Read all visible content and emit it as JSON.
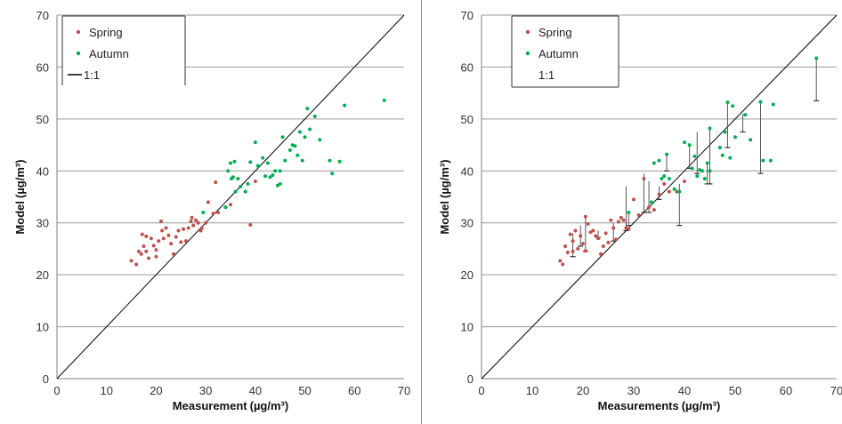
{
  "chart_data": [
    {
      "type": "scatter",
      "xlabel": "Measurement",
      "xunit": "(µg/m³)",
      "ylabel": "Model",
      "yunit": "(µg/m³)",
      "xlim": [
        0,
        70
      ],
      "ylim": [
        0,
        70
      ],
      "x_ticks": [
        "0",
        "10",
        "20",
        "30",
        "40",
        "50",
        "60",
        "70"
      ],
      "y_ticks": [
        "0",
        "10",
        "20",
        "30",
        "40",
        "50",
        "60",
        "70"
      ],
      "grid": "horizontal",
      "legend": {
        "position": "top-left",
        "entries": [
          {
            "label": "Spring",
            "color": "#c0504d",
            "marker": "dot"
          },
          {
            "label": "Autumn",
            "color": "#00b050",
            "marker": "dot"
          },
          {
            "label": "1:1",
            "color": "#000000",
            "marker": "line"
          }
        ]
      },
      "reference_line": {
        "name": "1:1",
        "from": [
          0,
          0
        ],
        "to": [
          70,
          70
        ]
      },
      "series": [
        {
          "name": "Spring",
          "color": "#c0504d",
          "points": [
            [
              15,
              22.7
            ],
            [
              16,
              22
            ],
            [
              16.5,
              24.5
            ],
            [
              17,
              24
            ],
            [
              17.2,
              27.8
            ],
            [
              17.5,
              25.5
            ],
            [
              18,
              27.4
            ],
            [
              18,
              24.5
            ],
            [
              18.5,
              23.2
            ],
            [
              19,
              27
            ],
            [
              19.5,
              25.6
            ],
            [
              20,
              24.8
            ],
            [
              20,
              23.5
            ],
            [
              20.5,
              26.5
            ],
            [
              21,
              30.3
            ],
            [
              21.2,
              28.5
            ],
            [
              21.5,
              27
            ],
            [
              22,
              29
            ],
            [
              22.5,
              27.6
            ],
            [
              23,
              26
            ],
            [
              23.5,
              24
            ],
            [
              24,
              27.3
            ],
            [
              24.5,
              28.5
            ],
            [
              25,
              26.3
            ],
            [
              25.5,
              28.8
            ],
            [
              26,
              26.5
            ],
            [
              26.5,
              29
            ],
            [
              27,
              30.3
            ],
            [
              27.2,
              31
            ],
            [
              27.5,
              29.5
            ],
            [
              28,
              30.5
            ],
            [
              28.5,
              30
            ],
            [
              29,
              28.5
            ],
            [
              29.2,
              29
            ],
            [
              30,
              30
            ],
            [
              30.5,
              34
            ],
            [
              31.5,
              31.8
            ],
            [
              32,
              37.8
            ],
            [
              32.5,
              32
            ],
            [
              34,
              33
            ],
            [
              35,
              33.5
            ],
            [
              38,
              36
            ],
            [
              39,
              29.6
            ],
            [
              40,
              38
            ]
          ]
        },
        {
          "name": "Autumn",
          "color": "#00b050",
          "points": [
            [
              29.5,
              32
            ],
            [
              34,
              33
            ],
            [
              34.5,
              40
            ],
            [
              35,
              41.5
            ],
            [
              35.2,
              38.5
            ],
            [
              35.5,
              38.8
            ],
            [
              35.8,
              41.8
            ],
            [
              36,
              36
            ],
            [
              36.5,
              38.5
            ],
            [
              37,
              37
            ],
            [
              38,
              36
            ],
            [
              38.5,
              37.5
            ],
            [
              39,
              41.7
            ],
            [
              40,
              45.5
            ],
            [
              40.5,
              41
            ],
            [
              41.5,
              42.5
            ],
            [
              42,
              39
            ],
            [
              42.5,
              41.5
            ],
            [
              43,
              38.8
            ],
            [
              43.5,
              39.2
            ],
            [
              44,
              40
            ],
            [
              44.5,
              37.2
            ],
            [
              45,
              37.5
            ],
            [
              45,
              40
            ],
            [
              45.5,
              46.5
            ],
            [
              46,
              42
            ],
            [
              47,
              44
            ],
            [
              47.5,
              45
            ],
            [
              48,
              44.8
            ],
            [
              48.5,
              43
            ],
            [
              49,
              47.5
            ],
            [
              49.5,
              42
            ],
            [
              50,
              46.5
            ],
            [
              50.5,
              52
            ],
            [
              51,
              48
            ],
            [
              52,
              50.5
            ],
            [
              53,
              46
            ],
            [
              55,
              42
            ],
            [
              55.5,
              39.5
            ],
            [
              57,
              41.8
            ],
            [
              58,
              52.6
            ],
            [
              66,
              53.6
            ]
          ]
        }
      ]
    },
    {
      "type": "scatter",
      "xlabel": "Measurements",
      "xunit": "(µg/m³)",
      "ylabel": "Model",
      "yunit": "(µg/m³)",
      "xlim": [
        0,
        70
      ],
      "ylim": [
        0,
        70
      ],
      "x_ticks": [
        "0",
        "10",
        "20",
        "30",
        "40",
        "50",
        "60",
        "70"
      ],
      "y_ticks": [
        "0",
        "10",
        "20",
        "30",
        "40",
        "50",
        "60",
        "70"
      ],
      "grid": "horizontal",
      "legend": {
        "position": "top-left",
        "entries": [
          {
            "label": "Spring",
            "color": "#c0504d",
            "marker": "dot"
          },
          {
            "label": "Autumn",
            "color": "#00b050",
            "marker": "dot"
          },
          {
            "label": "1:1",
            "color": "#000000",
            "marker": "line"
          }
        ]
      },
      "reference_line": {
        "name": "1:1",
        "from": [
          0,
          0
        ],
        "to": [
          70,
          70
        ]
      },
      "series": [
        {
          "name": "Spring",
          "color": "#c0504d",
          "points": [
            [
              15.5,
              22.7
            ],
            [
              16,
              22
            ],
            [
              16.5,
              25.5
            ],
            [
              17,
              24.3
            ],
            [
              17.5,
              27.8
            ],
            [
              18,
              26.5
            ],
            [
              18,
              24.5
            ],
            [
              18.5,
              28.5
            ],
            [
              19,
              25
            ],
            [
              19.5,
              27.5
            ],
            [
              20,
              26
            ],
            [
              20.5,
              24.6
            ],
            [
              20.5,
              31.2
            ],
            [
              21,
              29.8
            ],
            [
              21.5,
              28.2
            ],
            [
              22,
              28.5
            ],
            [
              22.5,
              27.5
            ],
            [
              23,
              27
            ],
            [
              23.5,
              24
            ],
            [
              24,
              25.5
            ],
            [
              24.5,
              28
            ],
            [
              25,
              26.2
            ],
            [
              25.5,
              30.5
            ],
            [
              26,
              29
            ],
            [
              26.5,
              26.8
            ],
            [
              27,
              30.2
            ],
            [
              27.5,
              31
            ],
            [
              28,
              30.5
            ],
            [
              28.5,
              29
            ],
            [
              29,
              28.8
            ],
            [
              30,
              34.5
            ],
            [
              31,
              31.5
            ],
            [
              32,
              38.5
            ],
            [
              33,
              33
            ],
            [
              34,
              32.5
            ],
            [
              35,
              35.5
            ],
            [
              36,
              37.5
            ],
            [
              37,
              36
            ],
            [
              38.5,
              36
            ],
            [
              40,
              38
            ]
          ]
        },
        {
          "name": "Autumn",
          "color": "#00b050",
          "points": [
            [
              29,
              32
            ],
            [
              33.5,
              34
            ],
            [
              34,
              41.5
            ],
            [
              35,
              42
            ],
            [
              35.5,
              38.5
            ],
            [
              36,
              39
            ],
            [
              36.5,
              43.2
            ],
            [
              37,
              38.5
            ],
            [
              38,
              36.5
            ],
            [
              39,
              36
            ],
            [
              40,
              45.5
            ],
            [
              41,
              45
            ],
            [
              41.5,
              40.5
            ],
            [
              42,
              42.8
            ],
            [
              42.5,
              39
            ],
            [
              43,
              40.2
            ],
            [
              43.5,
              40
            ],
            [
              44,
              38.5
            ],
            [
              44.5,
              41.5
            ],
            [
              45,
              48.2
            ],
            [
              45,
              40
            ],
            [
              47,
              44.5
            ],
            [
              47.5,
              43
            ],
            [
              48,
              47.5
            ],
            [
              48.5,
              53.2
            ],
            [
              49,
              42.5
            ],
            [
              49.5,
              52.5
            ],
            [
              50,
              46.5
            ],
            [
              52,
              50.8
            ],
            [
              53,
              46
            ],
            [
              55,
              53.3
            ],
            [
              55.5,
              42
            ],
            [
              57,
              42
            ],
            [
              57.5,
              52.8
            ],
            [
              66,
              61.7
            ]
          ]
        }
      ],
      "error_bars": [
        [
          18,
          23.5,
          28
        ],
        [
          19.5,
          25.5,
          29.5
        ],
        [
          20.5,
          24.5,
          31
        ],
        [
          23,
          27.2,
          28.5
        ],
        [
          26,
          26.5,
          30
        ],
        [
          28.5,
          28.5,
          37
        ],
        [
          29,
          29.5,
          32
        ],
        [
          32,
          32,
          39.5
        ],
        [
          33,
          32,
          38
        ],
        [
          35,
          34.5,
          37
        ],
        [
          36.5,
          40,
          43.3
        ],
        [
          39,
          29.5,
          37.5
        ],
        [
          41,
          40.5,
          45
        ],
        [
          42.5,
          39.5,
          47.5
        ],
        [
          44.5,
          37.5,
          41.5
        ],
        [
          45,
          37.5,
          48.5
        ],
        [
          48.5,
          44.5,
          53
        ],
        [
          51.5,
          47.5,
          51
        ],
        [
          55,
          39.5,
          53.5
        ],
        [
          66,
          53.5,
          61.5
        ]
      ]
    }
  ]
}
